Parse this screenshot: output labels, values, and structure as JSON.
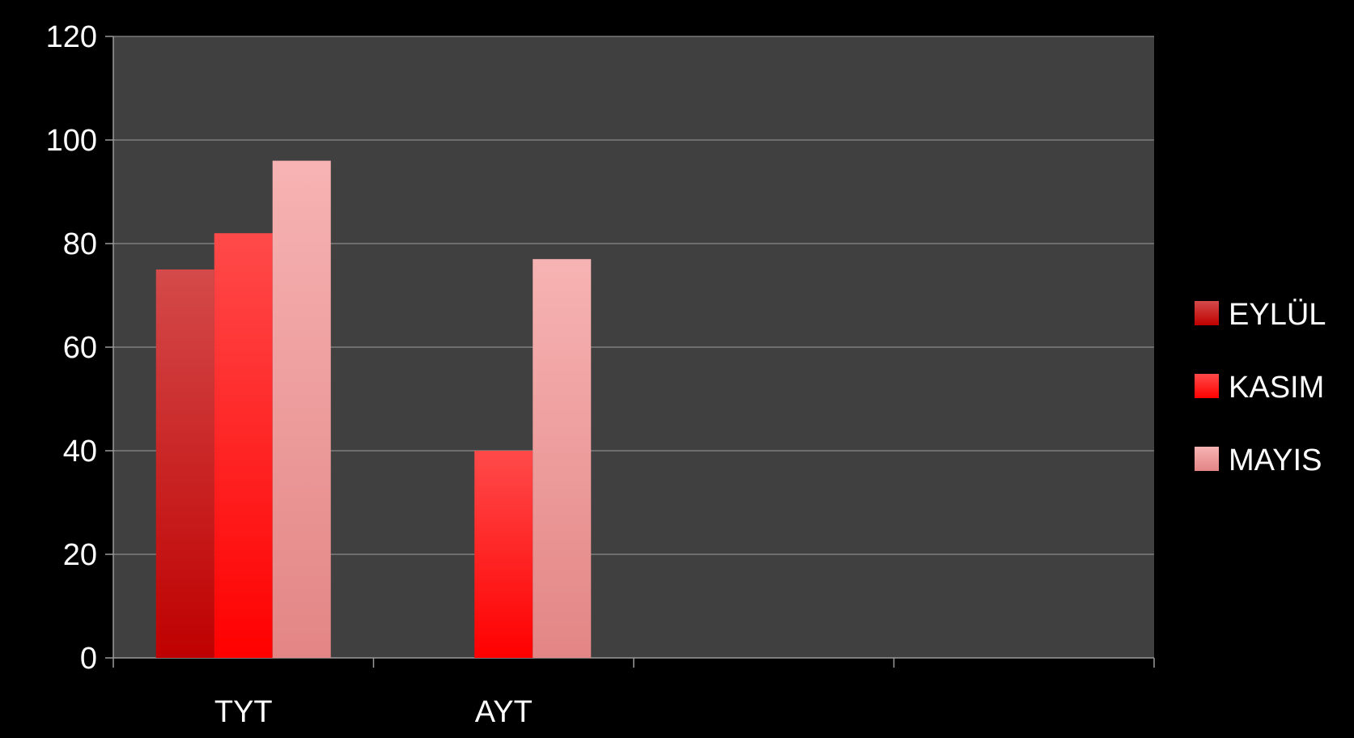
{
  "chart_data": {
    "type": "bar",
    "categories": [
      "TYT",
      "AYT",
      "",
      ""
    ],
    "series": [
      {
        "name": "EYLÜL",
        "values": [
          75,
          null,
          null,
          null
        ]
      },
      {
        "name": "KASIM",
        "values": [
          82,
          40,
          null,
          null
        ]
      },
      {
        "name": "MAYIS",
        "values": [
          96,
          77,
          null,
          null
        ]
      }
    ],
    "yticks": [
      "0",
      "20",
      "40",
      "60",
      "80",
      "100",
      "120"
    ],
    "ylim": [
      0,
      120
    ],
    "grid": true,
    "legend_position": "right",
    "title": "",
    "xlabel": "",
    "ylabel": ""
  },
  "colors": {
    "page_background": "#000000",
    "plot_background": "#404040",
    "grid": "#8a8a8a",
    "axis": "#9a9a9a",
    "text": "#ffffff",
    "series": [
      {
        "top": "#d44a4a",
        "bottom": "#bf0000"
      },
      {
        "top": "#ff4a4a",
        "bottom": "#ff0000"
      },
      {
        "top": "#f7b3b3",
        "bottom": "#e38585"
      }
    ]
  }
}
